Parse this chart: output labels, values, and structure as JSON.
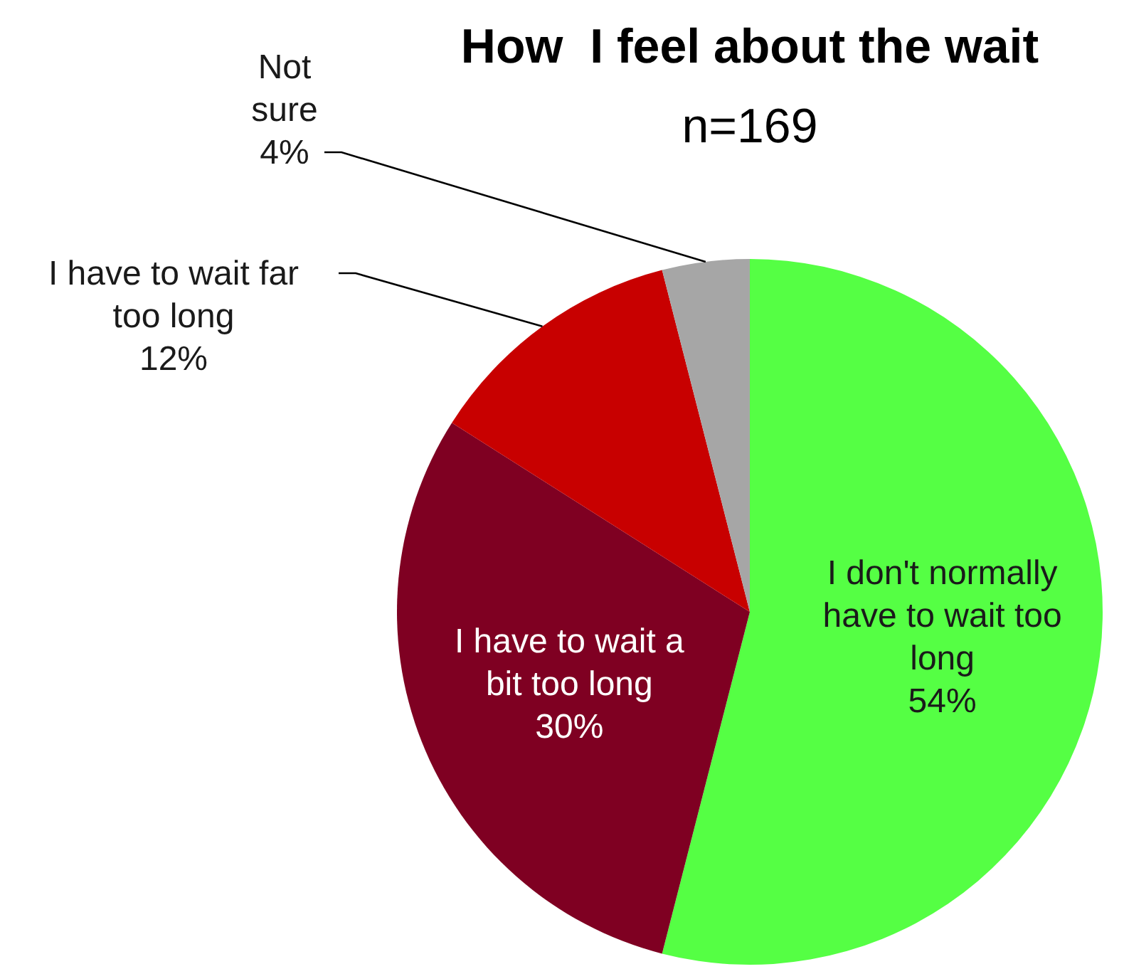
{
  "chart_data": {
    "type": "pie",
    "title": "How  I feel about the wait",
    "subtitle": "n=169",
    "categories": [
      "I don't normally have to wait too long",
      "I have to wait a bit too long",
      "I have to wait far too long",
      "Not sure"
    ],
    "values": [
      54,
      30,
      12,
      4
    ],
    "colors": [
      "#55ff44",
      "#7f0022",
      "#c80000",
      "#a6a6a6"
    ],
    "value_labels": [
      "54%",
      "30%",
      "12%",
      "4%"
    ]
  }
}
